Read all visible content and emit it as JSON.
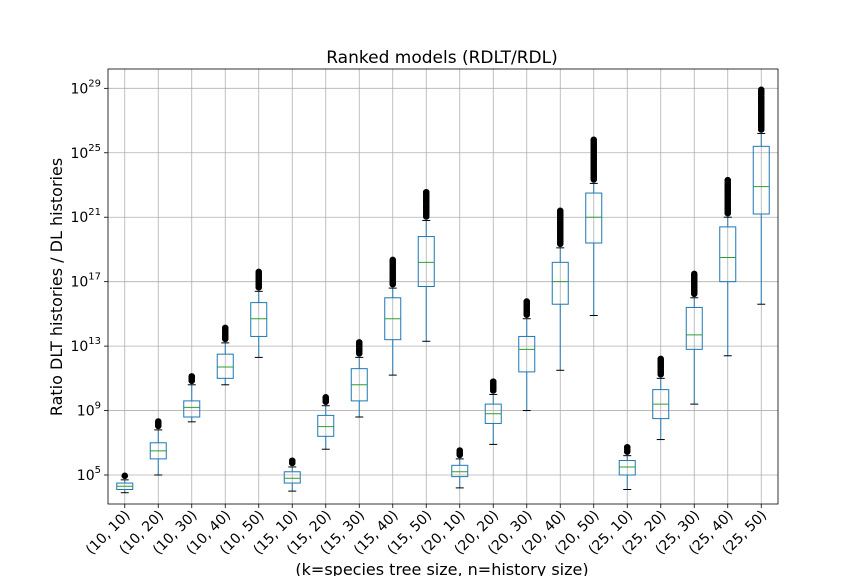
{
  "chart_data": {
    "type": "box",
    "title": "Ranked models (RDLT/RDL)",
    "xlabel": "(k=species tree size, n=history size)",
    "ylabel": "Ratio DLT histories / DL histories",
    "y_scale": "log10",
    "ylim_log10": [
      3.2,
      30.2
    ],
    "y_ticks": [
      {
        "exp": 5,
        "base": "10",
        "power": "5"
      },
      {
        "exp": 9,
        "base": "10",
        "power": "9"
      },
      {
        "exp": 13,
        "base": "10",
        "power": "13"
      },
      {
        "exp": 17,
        "base": "10",
        "power": "17"
      },
      {
        "exp": 21,
        "base": "10",
        "power": "21"
      },
      {
        "exp": 25,
        "base": "10",
        "power": "25"
      },
      {
        "exp": 29,
        "base": "10",
        "power": "29"
      }
    ],
    "grid": true,
    "colors": {
      "box": "#1f77b4",
      "median": "#2ca02c",
      "outlier": "#000000",
      "grid": "#b0b0b0"
    },
    "categories": [
      "(10, 10)",
      "(10, 20)",
      "(10, 30)",
      "(10, 40)",
      "(10, 50)",
      "(15, 10)",
      "(15, 20)",
      "(15, 30)",
      "(15, 40)",
      "(15, 50)",
      "(20, 10)",
      "(20, 20)",
      "(20, 30)",
      "(20, 40)",
      "(20, 50)",
      "(25, 10)",
      "(25, 20)",
      "(25, 30)",
      "(25, 40)",
      "(25, 50)"
    ],
    "boxes_log10": [
      {
        "whislo": 3.9,
        "q1": 4.1,
        "med": 4.3,
        "q3": 4.5,
        "whishi": 4.7,
        "flier_max": 5.0
      },
      {
        "whislo": 5.0,
        "q1": 6.0,
        "med": 6.5,
        "q3": 7.0,
        "whishi": 7.8,
        "flier_max": 8.4
      },
      {
        "whislo": 8.3,
        "q1": 8.6,
        "med": 9.2,
        "q3": 9.6,
        "whishi": 10.6,
        "flier_max": 11.2
      },
      {
        "whislo": 10.6,
        "q1": 11.0,
        "med": 11.7,
        "q3": 12.5,
        "whishi": 13.2,
        "flier_max": 14.2
      },
      {
        "whislo": 12.3,
        "q1": 13.6,
        "med": 14.7,
        "q3": 15.7,
        "whishi": 16.4,
        "flier_max": 17.7
      },
      {
        "whislo": 4.0,
        "q1": 4.5,
        "med": 4.8,
        "q3": 5.2,
        "whishi": 5.5,
        "flier_max": 5.9
      },
      {
        "whislo": 6.6,
        "q1": 7.4,
        "med": 8.0,
        "q3": 8.7,
        "whishi": 9.3,
        "flier_max": 9.9
      },
      {
        "whislo": 8.6,
        "q1": 9.6,
        "med": 10.6,
        "q3": 11.6,
        "whishi": 12.3,
        "flier_max": 13.3
      },
      {
        "whislo": 11.2,
        "q1": 13.4,
        "med": 14.7,
        "q3": 16.0,
        "whishi": 16.6,
        "flier_max": 18.4
      },
      {
        "whislo": 13.3,
        "q1": 16.7,
        "med": 18.2,
        "q3": 19.8,
        "whishi": 20.8,
        "flier_max": 22.6
      },
      {
        "whislo": 4.2,
        "q1": 4.9,
        "med": 5.2,
        "q3": 5.6,
        "whishi": 6.0,
        "flier_max": 6.6
      },
      {
        "whislo": 6.9,
        "q1": 8.2,
        "med": 8.8,
        "q3": 9.4,
        "whishi": 10.0,
        "flier_max": 10.8
      },
      {
        "whislo": 9.0,
        "q1": 11.4,
        "med": 12.8,
        "q3": 13.6,
        "whishi": 14.7,
        "flier_max": 15.8
      },
      {
        "whislo": 11.5,
        "q1": 15.6,
        "med": 17.0,
        "q3": 18.2,
        "whishi": 19.1,
        "flier_max": 21.4
      },
      {
        "whislo": 14.9,
        "q1": 19.4,
        "med": 21.0,
        "q3": 22.5,
        "whishi": 23.1,
        "flier_max": 25.9
      },
      {
        "whislo": 4.1,
        "q1": 5.0,
        "med": 5.5,
        "q3": 5.9,
        "whishi": 6.2,
        "flier_max": 6.8
      },
      {
        "whislo": 7.2,
        "q1": 8.5,
        "med": 9.4,
        "q3": 10.3,
        "whishi": 11.0,
        "flier_max": 12.3
      },
      {
        "whislo": 9.4,
        "q1": 12.8,
        "med": 13.7,
        "q3": 15.4,
        "whishi": 16.0,
        "flier_max": 17.6
      },
      {
        "whislo": 12.4,
        "q1": 17.0,
        "med": 18.5,
        "q3": 20.4,
        "whishi": 21.0,
        "flier_max": 23.3
      },
      {
        "whislo": 15.6,
        "q1": 21.2,
        "med": 22.9,
        "q3": 25.4,
        "whishi": 26.2,
        "flier_max": 29.0
      }
    ]
  }
}
